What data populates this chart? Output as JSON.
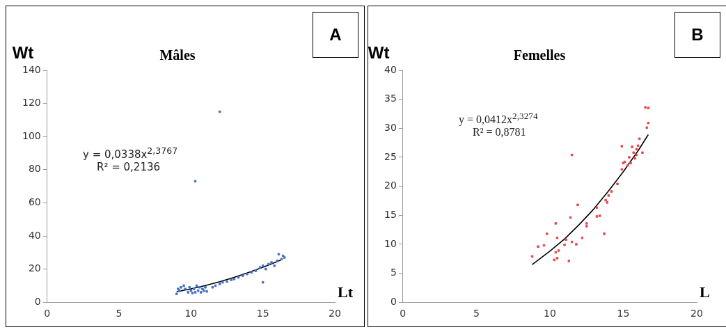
{
  "chart_data": [
    {
      "type": "scatter",
      "title": "Mâles",
      "xlabel": "Lt",
      "ylabel": "Wt",
      "annotations": [
        "A",
        "y = 0,0338x$^{2,3767}$",
        "R² = 0,2136"
      ],
      "xlim": [
        0,
        20
      ],
      "xticks": [
        0,
        5,
        10,
        15,
        20
      ],
      "ylim": [
        0,
        140
      ],
      "yticks": [
        0,
        20,
        40,
        60,
        80,
        100,
        120,
        140
      ],
      "grid": false,
      "legend": false,
      "series": [
        {
          "type": "scatter",
          "marker": "square",
          "color": "#4472c4",
          "x": [
            9.0,
            9.1,
            9.2,
            9.3,
            9.5,
            9.6,
            9.8,
            9.9,
            10.0,
            10.1,
            10.2,
            10.3,
            10.4,
            10.5,
            10.6,
            10.7,
            10.8,
            10.9,
            11.0,
            11.1,
            11.5,
            11.7,
            12.0,
            12.2,
            12.5,
            12.8,
            13.0,
            13.3,
            13.6,
            13.9,
            14.2,
            14.5,
            14.8,
            15.0,
            15.2,
            15.4,
            15.6,
            15.8,
            16.0,
            16.1,
            16.3,
            16.5,
            16.4,
            10.3,
            12.0,
            15.0
          ],
          "values": [
            5,
            8,
            7,
            9,
            10,
            8,
            6,
            9,
            7,
            5.5,
            8,
            6,
            10,
            7,
            9,
            6,
            8,
            7,
            9,
            6.5,
            9,
            10,
            11,
            12,
            12.5,
            13.5,
            14,
            15,
            16,
            17,
            18,
            19,
            21,
            22,
            20,
            23,
            24,
            22,
            25,
            29,
            26,
            27,
            28,
            73,
            115,
            12
          ]
        },
        {
          "type": "line",
          "marker": "none",
          "color": "#000000",
          "x": [
            9,
            10,
            11,
            12,
            13,
            14,
            15,
            16,
            16.3
          ],
          "values": [
            6.3,
            8.1,
            10.1,
            12.4,
            15.0,
            17.9,
            21.1,
            24.6,
            25.7
          ]
        }
      ]
    },
    {
      "type": "scatter",
      "title": "Femelles",
      "xlabel": "L",
      "ylabel": "Wt",
      "annotations": [
        "B",
        "y = 0,0412x$^{2,3274}$",
        "R² = 0,8781"
      ],
      "xlim": [
        0,
        20
      ],
      "xticks": [
        0,
        5,
        10,
        15,
        20
      ],
      "ylim": [
        0,
        40
      ],
      "yticks": [
        0,
        5,
        10,
        15,
        20,
        25,
        30,
        35,
        40
      ],
      "grid": false,
      "legend": false,
      "series": [
        {
          "type": "scatter",
          "marker": "square",
          "color": "#e8474b",
          "x": [
            8.8,
            9.2,
            9.6,
            9.8,
            10.4,
            10.5,
            10.4,
            10.6,
            10.3,
            10.5,
            11.0,
            11.3,
            11.1,
            11.4,
            11.5,
            11.5,
            11.8,
            11.9,
            12.2,
            12.5,
            12.5,
            13.2,
            13.4,
            13.7,
            13.2,
            13.8,
            13.9,
            14.0,
            14.2,
            14.6,
            14.9,
            14.9,
            15.0,
            15.1,
            15.3,
            15.4,
            15.5,
            15.6,
            15.7,
            15.8,
            15.9,
            15.9,
            16.0,
            16.1,
            16.3,
            16.6,
            16.7,
            16.5,
            16.7
          ],
          "values": [
            7.9,
            9.6,
            9.8,
            11.8,
            13.6,
            11.1,
            8.6,
            8.9,
            7.3,
            7.6,
            9.9,
            7.1,
            10.8,
            14.6,
            25.4,
            10.4,
            10.0,
            16.8,
            11.1,
            13.6,
            13.1,
            14.8,
            14.9,
            11.8,
            16.3,
            17.6,
            17.2,
            18.4,
            19.1,
            20.4,
            26.9,
            22.9,
            24.0,
            24.2,
            23.6,
            25.0,
            24.0,
            26.8,
            25.8,
            24.8,
            26.4,
            25.4,
            27.0,
            28.2,
            25.8,
            30.1,
            30.9,
            33.6,
            33.5
          ]
        },
        {
          "type": "line",
          "marker": "none",
          "color": "#000000",
          "x": [
            8.8,
            10,
            11,
            12,
            13,
            14,
            15,
            16,
            16.7
          ],
          "values": [
            6.5,
            8.8,
            10.9,
            13.4,
            16.1,
            19.2,
            22.5,
            26.1,
            28.9
          ]
        }
      ]
    }
  ]
}
